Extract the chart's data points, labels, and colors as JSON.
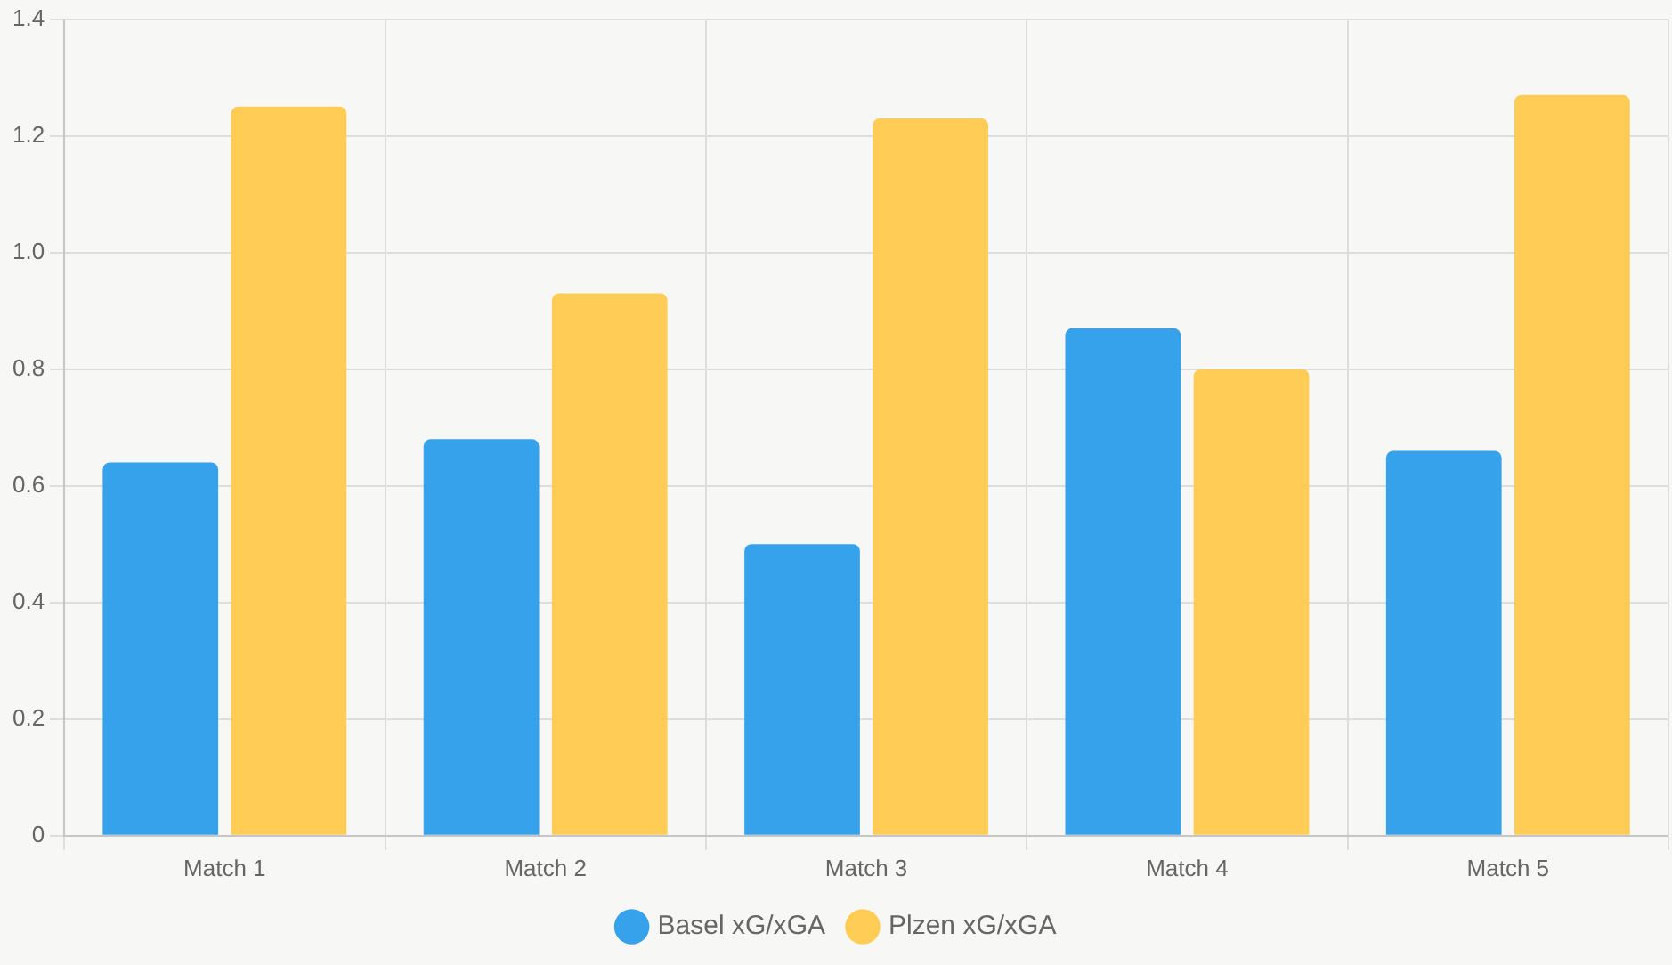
{
  "chart_data": {
    "type": "bar",
    "categories": [
      "Match 1",
      "Match 2",
      "Match 3",
      "Match 4",
      "Match 5"
    ],
    "series": [
      {
        "name": "Basel xG/xGA",
        "color": "#36a2eb",
        "values": [
          0.64,
          0.68,
          0.5,
          0.87,
          0.66
        ]
      },
      {
        "name": "Plzen xG/xGA",
        "color": "#ffcd56",
        "values": [
          1.25,
          0.93,
          1.23,
          0.8,
          1.27
        ]
      }
    ],
    "ylim": [
      0,
      1.4
    ],
    "yticks": [
      0,
      {
        "value": 0.2,
        "label": "0.2"
      },
      {
        "value": 0.4,
        "label": "0.4"
      },
      {
        "value": 0.6,
        "label": "0.6"
      },
      {
        "value": 0.8,
        "label": "0.8"
      },
      {
        "value": 1.0,
        "label": "1.0"
      },
      {
        "value": 1.2,
        "label": "1.2"
      },
      {
        "value": 1.4,
        "label": "1.4"
      }
    ],
    "grid": true,
    "legend": "bottom"
  }
}
